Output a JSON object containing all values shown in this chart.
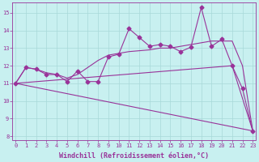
{
  "bg_color": "#c8f0f0",
  "grid_color": "#a8d8d8",
  "line_color": "#993399",
  "xlabel": "Windchill (Refroidissement éolien,°C)",
  "x_ticks": [
    0,
    1,
    2,
    3,
    4,
    5,
    6,
    7,
    8,
    9,
    10,
    11,
    12,
    13,
    14,
    15,
    16,
    17,
    18,
    19,
    20,
    21,
    22,
    23
  ],
  "y_ticks": [
    8,
    9,
    10,
    11,
    12,
    13,
    14,
    15
  ],
  "ylim": [
    7.8,
    15.6
  ],
  "xlim": [
    -0.3,
    23.3
  ],
  "line1_x": [
    0,
    1,
    2,
    3,
    4,
    5,
    6,
    7,
    8,
    9,
    10,
    11,
    12,
    13,
    14,
    15,
    16,
    17,
    18,
    19,
    20,
    21,
    22,
    23
  ],
  "line1_y": [
    11.0,
    11.9,
    11.8,
    11.5,
    11.5,
    11.1,
    11.7,
    11.1,
    11.1,
    12.5,
    12.65,
    14.1,
    13.6,
    13.1,
    13.2,
    13.1,
    12.8,
    13.05,
    15.3,
    13.1,
    13.5,
    12.0,
    10.7,
    8.3
  ],
  "line2_x": [
    0,
    1,
    2,
    3,
    4,
    5,
    6,
    7,
    8,
    9,
    10,
    11,
    12,
    13,
    14,
    15,
    16,
    17,
    18,
    19,
    20,
    21,
    22,
    23
  ],
  "line2_y": [
    11.0,
    11.9,
    11.8,
    11.6,
    11.5,
    11.3,
    11.5,
    11.9,
    12.3,
    12.6,
    12.7,
    12.8,
    12.85,
    12.9,
    13.0,
    13.0,
    13.1,
    13.2,
    13.3,
    13.4,
    13.4,
    13.4,
    12.0,
    8.3
  ],
  "line3_x": [
    0,
    21,
    23
  ],
  "line3_y": [
    11.0,
    12.0,
    8.3
  ],
  "linewidth": 0.8,
  "marker": "D",
  "marker_size": 2.5,
  "tick_fontsize": 5,
  "label_fontsize": 6
}
